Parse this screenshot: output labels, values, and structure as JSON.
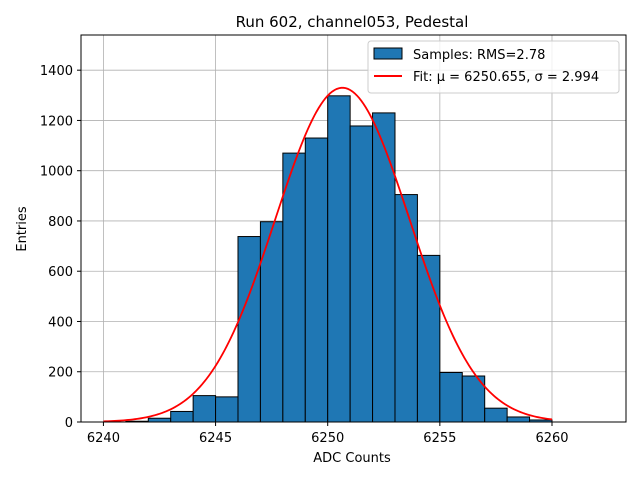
{
  "chart_data": {
    "type": "bar",
    "title": "Run 602, channel053, Pedestal",
    "xlabel": "ADC Counts",
    "ylabel": "Entries",
    "xlim": [
      6239.0,
      6263.3
    ],
    "ylim": [
      0,
      1540
    ],
    "xticks": [
      6240,
      6245,
      6250,
      6255,
      6260
    ],
    "yticks": [
      0,
      200,
      400,
      600,
      800,
      1000,
      1200,
      1400
    ],
    "grid": true,
    "legend_position": "top-right",
    "bar_color": "#1f77b4",
    "bar_edge_color": "#000000",
    "fit_color": "#ff0000",
    "bin_width": 1,
    "series": [
      {
        "name": "Samples: RMS=2.78",
        "bin_edges": [
          6240,
          6241,
          6242,
          6243,
          6244,
          6245,
          6246,
          6247,
          6248,
          6249,
          6250,
          6251,
          6252,
          6253,
          6254,
          6255,
          6256,
          6257,
          6258,
          6259,
          6260
        ],
        "values": [
          0,
          3,
          15,
          42,
          105,
          100,
          738,
          797,
          1070,
          1130,
          1298,
          1178,
          1230,
          905,
          663,
          197,
          183,
          55,
          20,
          8
        ]
      }
    ],
    "fit": {
      "name": "Fit: μ = 6250.655, σ = 2.994",
      "mu": 6250.655,
      "sigma": 2.994,
      "amplitude": 1330,
      "x_range": [
        6240,
        6260
      ]
    }
  }
}
